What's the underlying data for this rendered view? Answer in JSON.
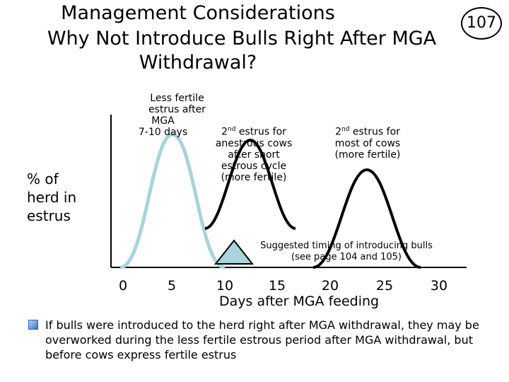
{
  "slide": {
    "title_line1": "Management Considerations",
    "title_line2": "Why Not Introduce Bulls Right After MGA",
    "title_line3": "Withdrawal?",
    "page_number": "107"
  },
  "chart": {
    "ylabel_lines": [
      "% of",
      "herd in",
      "estrus"
    ],
    "xlabel": "Days after MGA feeding",
    "x_ticks": [
      "0",
      "5",
      "10",
      "15",
      "20",
      "25",
      "30"
    ],
    "curves": [
      {
        "name": "less-fertile-estrus",
        "color": "#a8d4dc"
      },
      {
        "name": "second-estrus-anestrous",
        "color": "#000000"
      },
      {
        "name": "second-estrus-most-cows",
        "color": "#000000"
      }
    ],
    "marker_color": "#a8d4dc"
  },
  "annotations": {
    "less_fertile": [
      "Less fertile",
      "estrus after",
      "MGA",
      "7-10 days"
    ],
    "anestrous_heading": "estrus for",
    "anestrous_prefix": "2",
    "anestrous_sup": "nd",
    "anestrous_rest": [
      "anestrous cows",
      "after short",
      "estrous cycle",
      "(more fertile)"
    ],
    "most_cows_prefix": "2",
    "most_cows_sup": "nd",
    "most_cows_heading": "estrus for",
    "most_cows_rest": [
      "most of cows",
      "(more fertile)"
    ],
    "timing_line1": "Suggested timing of introducing bulls",
    "timing_line2": "(see page 104 and 105)"
  },
  "bullet": {
    "text": "If bulls were introduced to the herd right after MGA withdrawal, they may be overworked during the less fertile estrous period after MGA withdrawal, but before cows express fertile estrus"
  }
}
